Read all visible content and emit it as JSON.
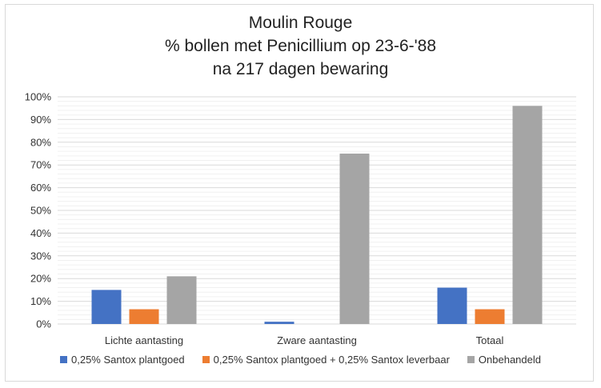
{
  "chart_data": {
    "type": "bar",
    "title": [
      "Moulin Rouge",
      "% bollen met Penicillium op 23-6-'88",
      "na 217 dagen bewaring"
    ],
    "categories": [
      "Lichte aantasting",
      "Zware aantasting",
      "Totaal"
    ],
    "series": [
      {
        "name": "0,25% Santox plantgoed",
        "color": "#4472c4",
        "values": [
          15,
          1,
          16
        ]
      },
      {
        "name": "0,25% Santox plantgoed + 0,25% Santox leverbaar",
        "color": "#ed7d31",
        "values": [
          6.5,
          0,
          6.5
        ]
      },
      {
        "name": "Onbehandeld",
        "color": "#a5a5a5",
        "values": [
          21,
          75,
          96
        ]
      }
    ],
    "ylim": [
      0,
      100
    ],
    "yticks": [
      "0%",
      "10%",
      "20%",
      "30%",
      "40%",
      "50%",
      "60%",
      "70%",
      "80%",
      "90%",
      "100%"
    ],
    "grid": true,
    "legend_position": "bottom"
  }
}
